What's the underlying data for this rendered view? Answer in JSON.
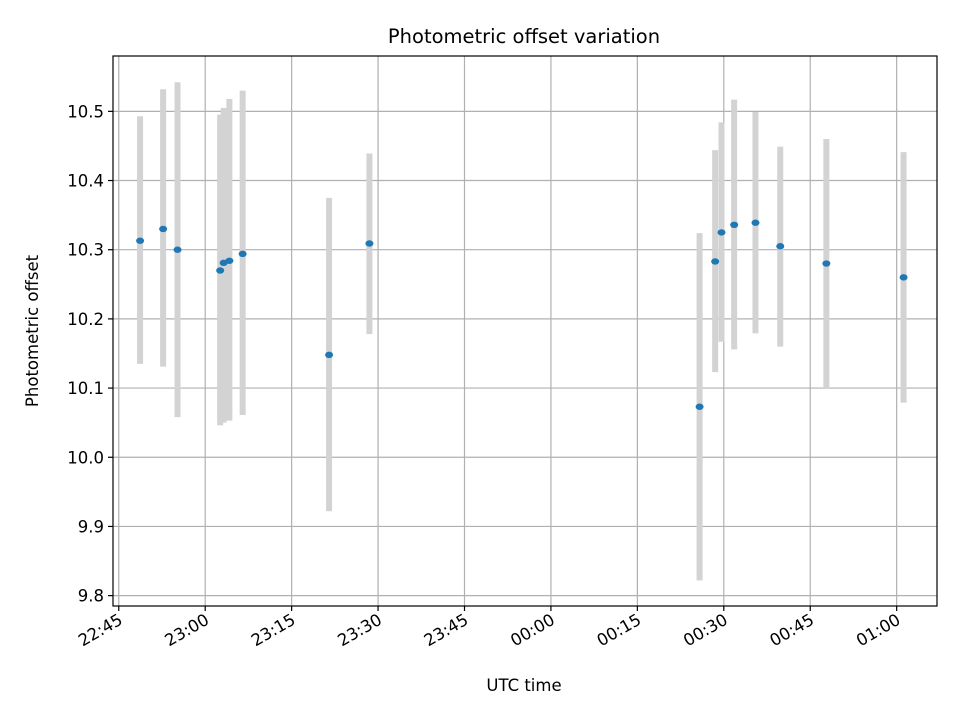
{
  "chart_data": {
    "type": "scatter",
    "title": "Photometric offset variation",
    "xlabel": "UTC time",
    "ylabel": "Photometric offset",
    "x_ticks": [
      "22:45",
      "23:00",
      "23:15",
      "23:30",
      "23:45",
      "00:00",
      "00:15",
      "00:30",
      "00:45",
      "01:00"
    ],
    "y_ticks": [
      "9.8",
      "9.9",
      "10.0",
      "10.1",
      "10.2",
      "10.3",
      "10.4",
      "10.5"
    ],
    "xlim": [
      "22:44",
      "01:07"
    ],
    "ylim": [
      9.785,
      10.58
    ],
    "grid": true,
    "point_color": "#1f77b4",
    "errorbar_color": "#d3d3d3",
    "points": [
      {
        "t": "22:48.7",
        "y": 10.313,
        "low": 10.135,
        "high": 10.493
      },
      {
        "t": "22:52.7",
        "y": 10.33,
        "low": 10.131,
        "high": 10.532
      },
      {
        "t": "22:55.2",
        "y": 10.3,
        "low": 10.058,
        "high": 10.542
      },
      {
        "t": "23:02.6",
        "y": 10.27,
        "low": 10.046,
        "high": 10.495
      },
      {
        "t": "23:03.2",
        "y": 10.281,
        "low": 10.05,
        "high": 10.505
      },
      {
        "t": "23:04.2",
        "y": 10.284,
        "low": 10.053,
        "high": 10.518
      },
      {
        "t": "23:06.5",
        "y": 10.294,
        "low": 10.061,
        "high": 10.53
      },
      {
        "t": "23:21.5",
        "y": 10.148,
        "low": 9.922,
        "high": 10.375
      },
      {
        "t": "23:28.5",
        "y": 10.309,
        "low": 10.178,
        "high": 10.439
      },
      {
        "t": "00:25.8",
        "y": 10.073,
        "low": 9.822,
        "high": 10.324
      },
      {
        "t": "00:28.5",
        "y": 10.283,
        "low": 10.123,
        "high": 10.444
      },
      {
        "t": "00:29.6",
        "y": 10.325,
        "low": 10.167,
        "high": 10.484
      },
      {
        "t": "00:31.8",
        "y": 10.336,
        "low": 10.156,
        "high": 10.517
      },
      {
        "t": "00:35.5",
        "y": 10.339,
        "low": 10.179,
        "high": 10.499
      },
      {
        "t": "00:39.8",
        "y": 10.305,
        "low": 10.16,
        "high": 10.449
      },
      {
        "t": "00:47.8",
        "y": 10.28,
        "low": 10.1,
        "high": 10.46
      },
      {
        "t": "01:01.2",
        "y": 10.26,
        "low": 10.079,
        "high": 10.441
      }
    ]
  }
}
